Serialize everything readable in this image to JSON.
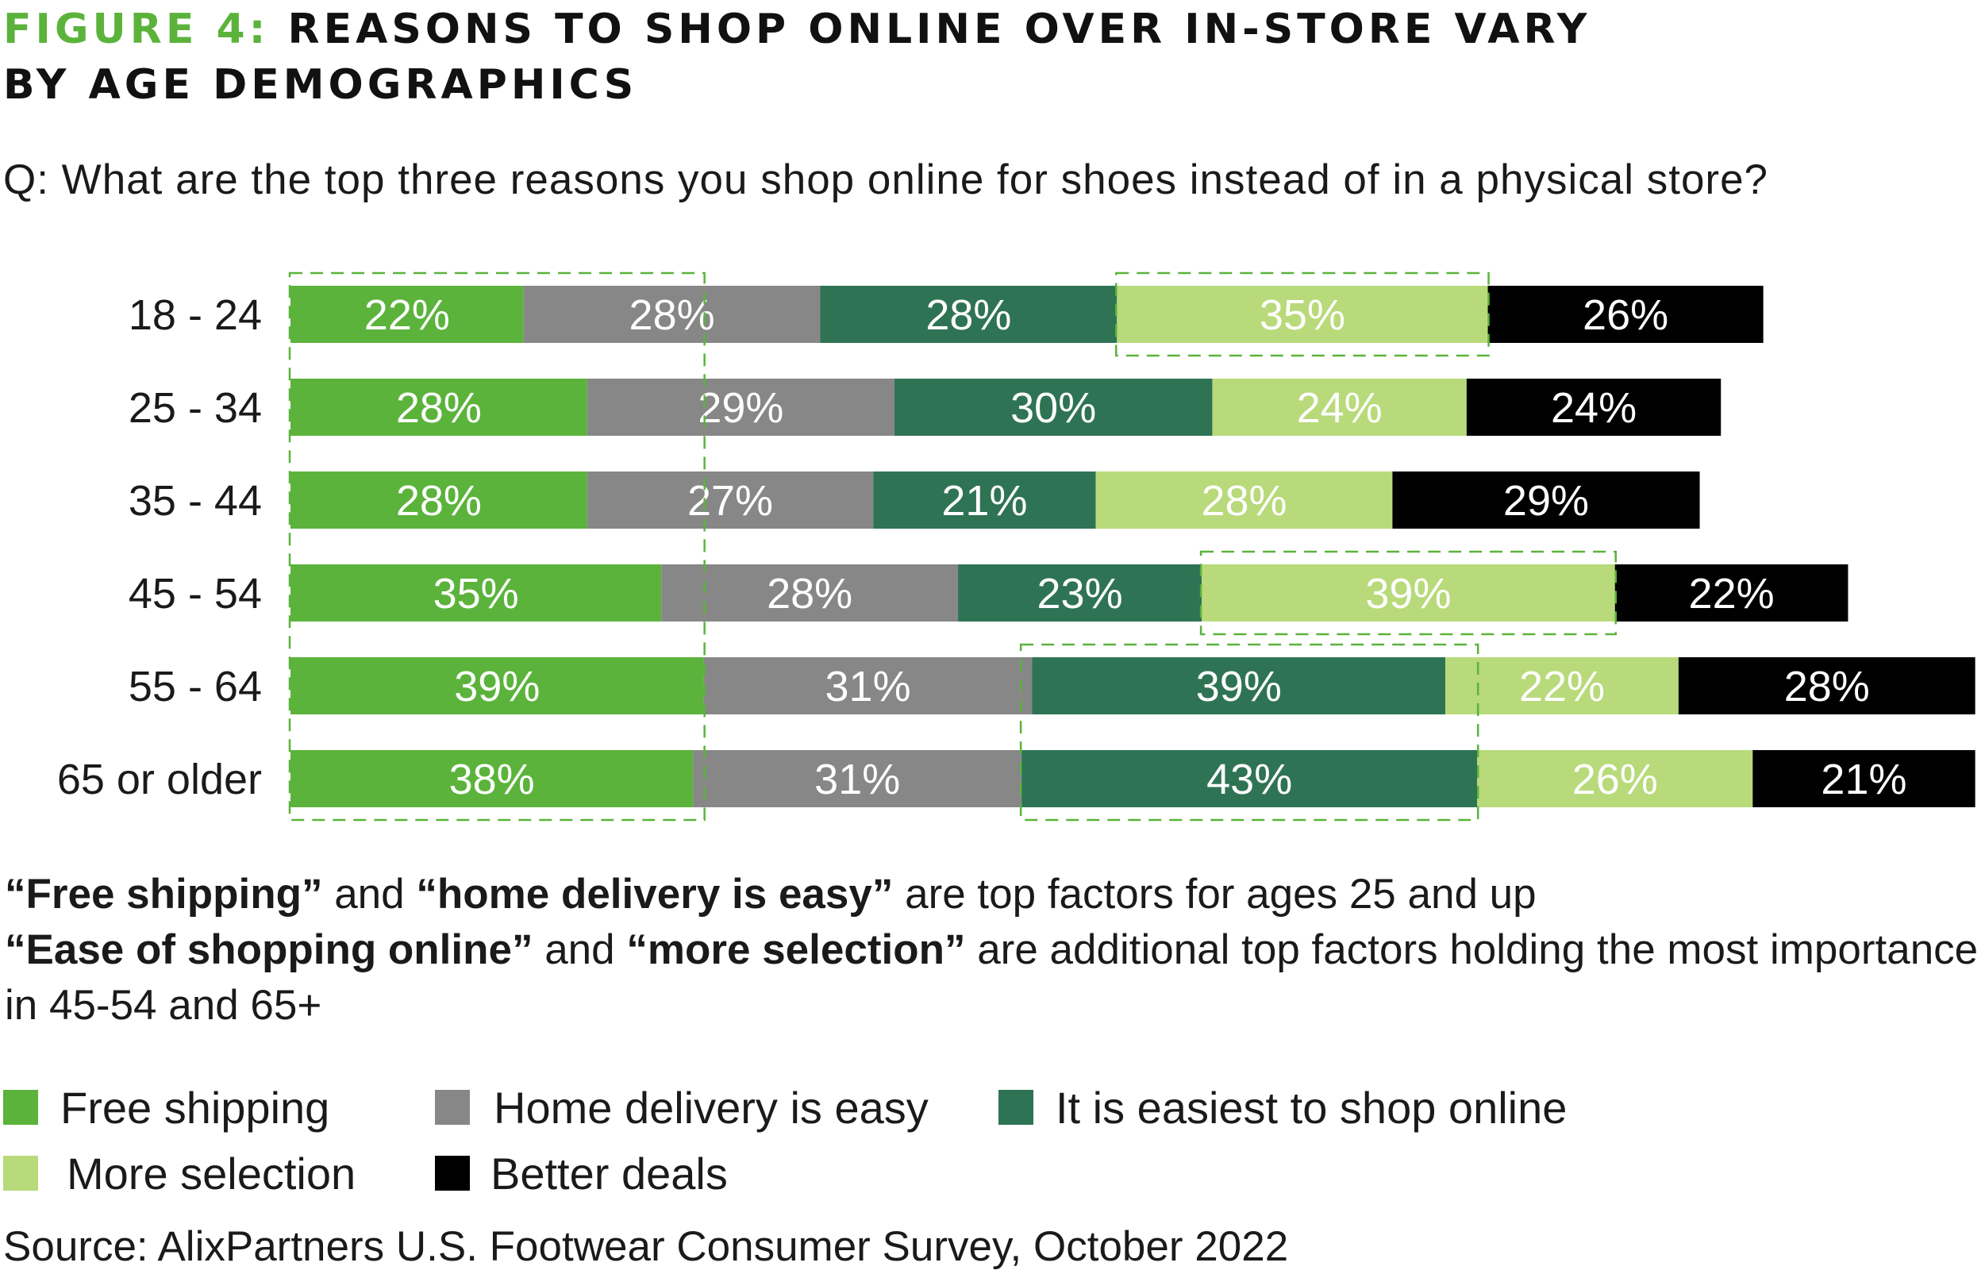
{
  "header": {
    "figure_label": "FIGURE 4:",
    "title_line1": "REASONS TO SHOP ONLINE OVER IN-STORE VARY",
    "title_line2": "BY AGE DEMOGRAPHICS",
    "question": "Q:  What are the top three reasons you shop online for shoes instead of in a physical store?"
  },
  "chart_data": {
    "type": "bar",
    "orientation": "horizontal",
    "stacked": true,
    "categories": [
      "18 - 24",
      "25 - 34",
      "35 - 44",
      "45 - 54",
      "55 - 64",
      "65 or older"
    ],
    "series": [
      {
        "name": "Free shipping",
        "color": "#5bb33b",
        "text_color": "#ffffff",
        "values": [
          22,
          28,
          28,
          35,
          39,
          38
        ]
      },
      {
        "name": "Home delivery is easy",
        "color": "#878787",
        "text_color": "#ffffff",
        "values": [
          28,
          29,
          27,
          28,
          31,
          31
        ]
      },
      {
        "name": "It is easiest to shop online",
        "color": "#2f7355",
        "text_color": "#ffffff",
        "values": [
          28,
          30,
          21,
          23,
          39,
          43
        ]
      },
      {
        "name": "More selection",
        "color": "#b8da7a",
        "text_color": "#ffffff",
        "values": [
          35,
          24,
          28,
          39,
          22,
          26
        ]
      },
      {
        "name": "Better deals",
        "color": "#000000",
        "text_color": "#ffffff",
        "values": [
          26,
          24,
          29,
          22,
          28,
          21
        ]
      }
    ],
    "value_suffix": "%",
    "grid": false,
    "legend_position": "bottom",
    "highlights": [
      {
        "series": "Free shipping",
        "categories": [
          "18 - 24",
          "25 - 34",
          "35 - 44",
          "45 - 54",
          "55 - 64",
          "65 or older"
        ]
      },
      {
        "series": "More selection",
        "categories": [
          "18 - 24"
        ]
      },
      {
        "series": "More selection",
        "categories": [
          "45 - 54"
        ]
      },
      {
        "series": "It is easiest to shop online",
        "categories": [
          "55 - 64",
          "65 or older"
        ]
      }
    ]
  },
  "notes": {
    "line1_bold_a": "“Free shipping”",
    "line1_text_a": " and ",
    "line1_bold_b": "“home delivery is easy”",
    "line1_text_b": " are top factors for ages 25 and up",
    "line2_bold_a": "“Ease of shopping online”",
    "line2_text_a": " and ",
    "line2_bold_b": "“more selection”",
    "line2_text_b": " are additional top factors holding the most importance in 45-54 and 65+"
  },
  "source": "Source: AlixPartners U.S. Footwear Consumer Survey, October 2022"
}
